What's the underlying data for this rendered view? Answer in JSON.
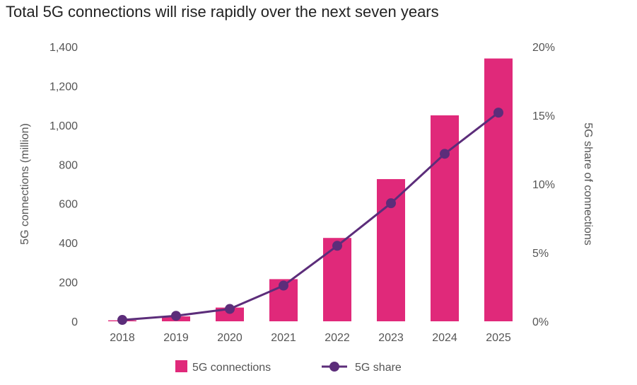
{
  "chart_data": {
    "type": "bar+line",
    "title": "Total 5G connections will rise rapidly over the next seven years",
    "categories": [
      "2018",
      "2019",
      "2020",
      "2021",
      "2022",
      "2023",
      "2024",
      "2025"
    ],
    "series": [
      {
        "name": "5G connections",
        "type": "bar",
        "axis": "left",
        "color": "#e0297a",
        "values": [
          5,
          25,
          70,
          215,
          425,
          725,
          1050,
          1340
        ]
      },
      {
        "name": "5G share",
        "type": "line",
        "axis": "right",
        "color": "#5c2d7a",
        "values": [
          0.1,
          0.4,
          0.9,
          2.6,
          5.5,
          8.6,
          12.2,
          15.2
        ]
      }
    ],
    "y_left": {
      "label": "5G connections (million)",
      "range": [
        0,
        1400
      ],
      "ticks": [
        0,
        200,
        400,
        600,
        800,
        1000,
        1200,
        1400
      ],
      "tick_labels": [
        "0",
        "200",
        "400",
        "600",
        "800",
        "1,000",
        "1,200",
        "1,400"
      ]
    },
    "y_right": {
      "label": "5G share of connections",
      "range": [
        0,
        20
      ],
      "ticks": [
        0,
        5,
        10,
        15,
        20
      ],
      "tick_labels": [
        "0%",
        "5%",
        "10%",
        "15%",
        "20%"
      ]
    },
    "legend": {
      "position": "bottom-center",
      "items": [
        "5G connections",
        "5G share"
      ]
    },
    "grid": false
  }
}
